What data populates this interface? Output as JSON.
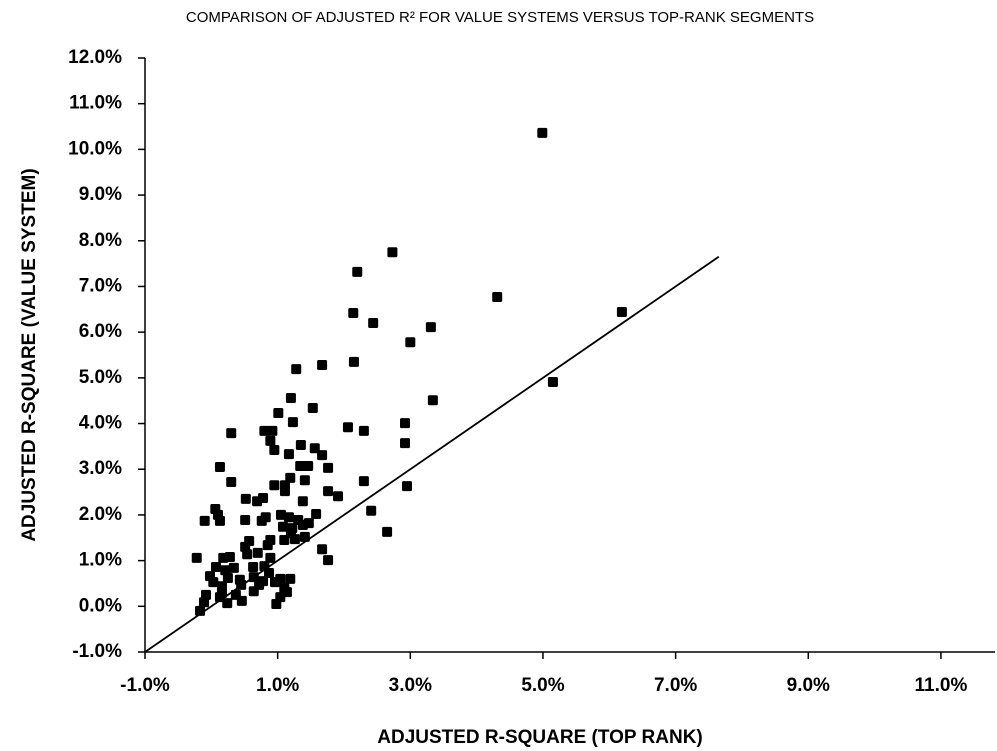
{
  "chart_data": {
    "type": "scatter",
    "title": "COMPARISON OF ADJUSTED R² FOR VALUE SYSTEMS VERSUS TOP-RANK SEGMENTS",
    "xlabel": "ADJUSTED R-SQUARE (TOP RANK)",
    "ylabel": "ADJUSTED R-SQUARE (VALUE SYSTEM)",
    "color": "#000000",
    "xlim": [
      -1,
      11.8
    ],
    "ylim": [
      -1,
      12
    ],
    "xticks": [
      {
        "value": -1,
        "label": "-1.0%"
      },
      {
        "value": 1,
        "label": "1.0%"
      },
      {
        "value": 3,
        "label": "3.0%"
      },
      {
        "value": 5,
        "label": "5.0%"
      },
      {
        "value": 7,
        "label": "7.0%"
      },
      {
        "value": 9,
        "label": "9.0%"
      },
      {
        "value": 11,
        "label": "11.0%"
      }
    ],
    "yticks": [
      {
        "value": -1,
        "label": "-1.0%"
      },
      {
        "value": 0,
        "label": "0.0%"
      },
      {
        "value": 1,
        "label": "1.0%"
      },
      {
        "value": 2,
        "label": "2.0%"
      },
      {
        "value": 3,
        "label": "3.0%"
      },
      {
        "value": 4,
        "label": "4.0%"
      },
      {
        "value": 5,
        "label": "5.0%"
      },
      {
        "value": 6,
        "label": "6.0%"
      },
      {
        "value": 7,
        "label": "7.0%"
      },
      {
        "value": 8,
        "label": "8.0%"
      },
      {
        "value": 9,
        "label": "9.0%"
      },
      {
        "value": 10,
        "label": "10.0%"
      },
      {
        "value": 11,
        "label": "11.0%"
      },
      {
        "value": 12,
        "label": "12.0%"
      }
    ],
    "diagonal": {
      "x": [
        -1,
        7.65
      ],
      "y": [
        -1,
        7.65
      ]
    },
    "x": [
      4.99,
      2.73,
      2.2,
      4.31,
      6.19,
      2.14,
      2.44,
      3.31,
      3.0,
      1.28,
      1.67,
      2.15,
      5.15,
      3.34,
      1.2,
      1.53,
      1.01,
      1.23,
      2.92,
      2.06,
      2.3,
      0.3,
      0.8,
      0.92,
      2.92,
      0.89,
      1.35,
      1.56,
      0.95,
      1.67,
      1.17,
      0.13,
      1.46,
      1.34,
      1.76,
      1.41,
      1.19,
      1.11,
      0.95,
      0.3,
      2.3,
      2.95,
      1.11,
      1.76,
      1.91,
      1.38,
      0.52,
      0.69,
      0.78,
      0.06,
      0.1,
      -0.1,
      0.13,
      2.41,
      1.58,
      1.05,
      1.17,
      1.31,
      0.51,
      0.76,
      1.47,
      1.38,
      1.08,
      1.22,
      1.2,
      2.65,
      1.41,
      1.26,
      1.1,
      0.89,
      0.57,
      0.85,
      0.51,
      1.67,
      0.7,
      -0.22,
      0.18,
      0.28,
      1.76,
      0.89,
      0.8,
      0.07,
      0.34,
      0.21,
      0.63,
      0.87,
      -0.02,
      0.64,
      0.25,
      0.43,
      1.04,
      1.19,
      0.78,
      0.03,
      0.96,
      0.45,
      0.16,
      0.72,
      1.1,
      0.64,
      0.16,
      -0.08,
      0.37,
      0.13,
      1.14,
      1.04,
      0.46,
      -0.11,
      0.24,
      0.98,
      -0.17,
      0.54,
      0.82
    ],
    "values": [
      10.36,
      7.75,
      7.32,
      6.77,
      6.44,
      6.42,
      6.2,
      6.11,
      5.78,
      5.19,
      5.28,
      5.35,
      4.91,
      4.51,
      4.56,
      4.34,
      4.23,
      4.03,
      4.01,
      3.92,
      3.84,
      3.79,
      3.84,
      3.84,
      3.57,
      3.62,
      3.53,
      3.46,
      3.42,
      3.31,
      3.33,
      3.05,
      3.07,
      3.07,
      3.03,
      2.76,
      2.81,
      2.65,
      2.65,
      2.72,
      2.74,
      2.63,
      2.52,
      2.52,
      2.41,
      2.3,
      2.35,
      2.3,
      2.37,
      2.13,
      2.0,
      1.87,
      1.87,
      2.09,
      2.02,
      2.0,
      1.95,
      1.89,
      1.89,
      1.87,
      1.82,
      1.78,
      1.74,
      1.71,
      1.6,
      1.63,
      1.52,
      1.47,
      1.45,
      1.45,
      1.43,
      1.34,
      1.3,
      1.25,
      1.17,
      1.06,
      1.06,
      1.08,
      1.01,
      1.06,
      0.88,
      0.86,
      0.84,
      0.79,
      0.86,
      0.73,
      0.66,
      0.64,
      0.62,
      0.58,
      0.6,
      0.6,
      0.55,
      0.53,
      0.53,
      0.47,
      0.44,
      0.47,
      0.4,
      0.33,
      0.29,
      0.25,
      0.25,
      0.2,
      0.31,
      0.2,
      0.12,
      0.09,
      0.07,
      0.05,
      -0.1,
      1.14,
      1.95
    ]
  }
}
